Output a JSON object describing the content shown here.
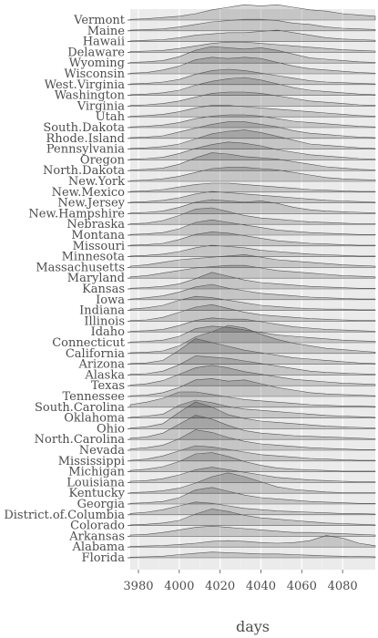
{
  "chart_data": {
    "type": "ridgeline",
    "xlabel": "days",
    "ylabel": "",
    "xlim": [
      3976,
      4096
    ],
    "x_ticks": [
      3980,
      4000,
      4020,
      4040,
      4060,
      4080
    ],
    "grid": true,
    "legend": "none",
    "fill_color": "#000000",
    "fill_opacity": 0.16,
    "stroke_color": "#555555",
    "panel_bg": "#ebebeb",
    "x": [
      3976,
      3984,
      3992,
      4000,
      4008,
      4016,
      4024,
      4032,
      4040,
      4048,
      4056,
      4064,
      4072,
      4080,
      4088,
      4096
    ],
    "series": [
      {
        "name": "Florida",
        "values": [
          0.05,
          0.08,
          0.12,
          0.25,
          0.35,
          0.45,
          0.4,
          0.35,
          0.3,
          0.3,
          0.25,
          0.2,
          0.15,
          0.12,
          0.1,
          0.08
        ]
      },
      {
        "name": "Alabama",
        "values": [
          0.05,
          0.08,
          0.12,
          0.2,
          0.3,
          0.45,
          0.5,
          0.45,
          0.35,
          0.3,
          0.35,
          0.5,
          0.9,
          0.7,
          0.3,
          0.1
        ]
      },
      {
        "name": "Arkansas",
        "values": [
          0.1,
          0.15,
          0.3,
          0.5,
          0.7,
          0.8,
          0.7,
          0.6,
          0.5,
          0.4,
          0.3,
          0.3,
          0.25,
          0.2,
          0.15,
          0.1
        ]
      },
      {
        "name": "Colorado",
        "values": [
          0.05,
          0.1,
          0.2,
          0.4,
          0.9,
          1.3,
          1.1,
          0.8,
          0.6,
          0.5,
          0.4,
          0.3,
          0.2,
          0.15,
          0.1,
          0.05
        ]
      },
      {
        "name": "District.of.Columbia",
        "values": [
          0.1,
          0.2,
          0.4,
          0.7,
          1.0,
          0.9,
          0.7,
          0.5,
          0.4,
          0.3,
          0.25,
          0.2,
          0.15,
          0.1,
          0.1,
          0.05
        ]
      },
      {
        "name": "Georgia",
        "values": [
          0.05,
          0.1,
          0.2,
          0.5,
          1.1,
          1.3,
          1.0,
          0.7,
          0.5,
          0.4,
          0.3,
          0.2,
          0.15,
          0.1,
          0.05,
          0.05
        ]
      },
      {
        "name": "Kentucky",
        "values": [
          0.05,
          0.1,
          0.2,
          0.4,
          0.8,
          1.3,
          1.6,
          1.3,
          0.9,
          0.5,
          0.3,
          0.2,
          0.1,
          0.05,
          0.05,
          0.05
        ]
      },
      {
        "name": "Louisiana",
        "values": [
          0.1,
          0.15,
          0.3,
          0.6,
          1.0,
          1.2,
          1.0,
          0.8,
          0.6,
          0.4,
          0.3,
          0.2,
          0.15,
          0.1,
          0.05,
          0.05
        ]
      },
      {
        "name": "Michigan",
        "values": [
          0.1,
          0.2,
          0.4,
          0.8,
          1.4,
          1.5,
          1.2,
          0.8,
          0.5,
          0.3,
          0.2,
          0.15,
          0.1,
          0.05,
          0.05,
          0.05
        ]
      },
      {
        "name": "Mississippi",
        "values": [
          0.05,
          0.15,
          0.4,
          0.8,
          1.2,
          1.1,
          0.9,
          0.7,
          0.5,
          0.4,
          0.3,
          0.2,
          0.15,
          0.1,
          0.05,
          0.05
        ]
      },
      {
        "name": "Nevada",
        "values": [
          0.1,
          0.2,
          0.4,
          0.9,
          1.6,
          1.4,
          1.0,
          0.7,
          0.5,
          0.4,
          0.3,
          0.2,
          0.15,
          0.1,
          0.05,
          0.05
        ]
      },
      {
        "name": "North.Carolina",
        "values": [
          0.1,
          0.2,
          0.5,
          1.2,
          1.9,
          1.6,
          1.1,
          0.7,
          0.5,
          0.4,
          0.3,
          0.25,
          0.2,
          0.15,
          0.1,
          0.05
        ]
      },
      {
        "name": "Ohio",
        "values": [
          0.05,
          0.15,
          0.4,
          1.3,
          2.1,
          1.7,
          1.1,
          0.8,
          0.6,
          0.5,
          0.4,
          0.3,
          0.2,
          0.15,
          0.1,
          0.05
        ]
      },
      {
        "name": "Oklahoma",
        "values": [
          0.05,
          0.15,
          0.3,
          1.0,
          1.4,
          1.2,
          0.9,
          0.7,
          0.6,
          0.5,
          0.4,
          0.3,
          0.2,
          0.15,
          0.1,
          0.05
        ]
      },
      {
        "name": "South.Carolina",
        "values": [
          0.2,
          0.4,
          0.7,
          1.2,
          1.2,
          1.0,
          0.8,
          0.6,
          0.5,
          0.4,
          0.3,
          0.2,
          0.15,
          0.1,
          0.1,
          0.05
        ]
      },
      {
        "name": "Tennessee",
        "values": [
          0.05,
          0.1,
          0.3,
          0.7,
          1.3,
          1.4,
          1.2,
          1.3,
          1.0,
          0.7,
          0.5,
          0.3,
          0.2,
          0.15,
          0.1,
          0.05
        ]
      },
      {
        "name": "Texas",
        "values": [
          0.05,
          0.15,
          0.4,
          0.9,
          1.4,
          1.6,
          1.4,
          1.1,
          0.9,
          0.7,
          0.5,
          0.4,
          0.3,
          0.2,
          0.15,
          0.1
        ]
      },
      {
        "name": "Alaska",
        "values": [
          0.05,
          0.1,
          0.3,
          0.8,
          1.5,
          1.4,
          1.3,
          1.1,
          0.9,
          0.7,
          0.5,
          0.3,
          0.2,
          0.15,
          0.1,
          0.05
        ]
      },
      {
        "name": "Arizona",
        "values": [
          0.05,
          0.1,
          0.3,
          1.1,
          2.0,
          1.7,
          1.4,
          1.1,
          0.9,
          0.7,
          0.5,
          0.4,
          0.3,
          0.2,
          0.1,
          0.05
        ]
      },
      {
        "name": "California",
        "values": [
          0.05,
          0.1,
          0.2,
          0.6,
          1.3,
          1.7,
          2.2,
          2.0,
          1.5,
          1.1,
          0.8,
          0.6,
          0.4,
          0.3,
          0.2,
          0.1
        ]
      },
      {
        "name": "Connecticut",
        "values": [
          0.05,
          0.1,
          0.2,
          0.5,
          1.1,
          1.3,
          1.2,
          1.0,
          0.8,
          0.6,
          0.5,
          0.4,
          0.3,
          0.2,
          0.15,
          0.1
        ]
      },
      {
        "name": "Idaho",
        "values": [
          0.05,
          0.1,
          0.2,
          0.5,
          0.9,
          1.1,
          1.0,
          1.0,
          0.8,
          0.6,
          0.4,
          0.3,
          0.2,
          0.15,
          0.1,
          0.05
        ]
      },
      {
        "name": "Illinois",
        "values": [
          0.05,
          0.1,
          0.3,
          0.7,
          1.1,
          1.3,
          1.0,
          0.7,
          0.5,
          0.4,
          0.3,
          0.2,
          0.15,
          0.1,
          0.05,
          0.05
        ]
      },
      {
        "name": "Indiana",
        "values": [
          0.1,
          0.2,
          0.4,
          0.8,
          1.1,
          1.0,
          0.8,
          0.6,
          0.4,
          0.3,
          0.2,
          0.15,
          0.1,
          0.1,
          0.05,
          0.05
        ]
      },
      {
        "name": "Iowa",
        "values": [
          0.05,
          0.15,
          0.3,
          0.6,
          1.0,
          1.2,
          0.9,
          0.7,
          0.5,
          0.4,
          0.3,
          0.2,
          0.15,
          0.1,
          0.05,
          0.05
        ]
      },
      {
        "name": "Kansas",
        "values": [
          0.05,
          0.1,
          0.2,
          0.4,
          0.8,
          1.3,
          1.0,
          0.7,
          0.5,
          0.4,
          0.3,
          0.2,
          0.15,
          0.1,
          0.05,
          0.05
        ]
      },
      {
        "name": "Maryland",
        "values": [
          0.1,
          0.2,
          0.4,
          0.6,
          0.8,
          0.9,
          1.0,
          1.0,
          0.8,
          0.6,
          0.5,
          0.4,
          0.3,
          0.2,
          0.15,
          0.1
        ]
      },
      {
        "name": "Massachusetts",
        "values": [
          0.1,
          0.2,
          0.4,
          0.6,
          0.7,
          0.8,
          0.9,
          1.0,
          0.8,
          0.6,
          0.5,
          0.4,
          0.3,
          0.2,
          0.15,
          0.1
        ]
      },
      {
        "name": "Minnesota",
        "values": [
          0.05,
          0.1,
          0.2,
          0.4,
          0.7,
          0.9,
          0.8,
          0.7,
          0.5,
          0.4,
          0.3,
          0.2,
          0.15,
          0.1,
          0.05,
          0.05
        ]
      },
      {
        "name": "Missouri",
        "values": [
          0.05,
          0.1,
          0.2,
          0.5,
          0.9,
          1.1,
          1.0,
          0.8,
          0.6,
          0.4,
          0.3,
          0.2,
          0.15,
          0.1,
          0.05,
          0.05
        ]
      },
      {
        "name": "Montana",
        "values": [
          0.05,
          0.1,
          0.2,
          0.5,
          1.0,
          1.2,
          1.0,
          0.8,
          0.6,
          0.4,
          0.3,
          0.2,
          0.15,
          0.1,
          0.05,
          0.05
        ]
      },
      {
        "name": "Nebraska",
        "values": [
          0.05,
          0.1,
          0.3,
          0.7,
          1.2,
          1.3,
          1.0,
          0.7,
          0.5,
          0.4,
          0.3,
          0.2,
          0.15,
          0.1,
          0.05,
          0.05
        ]
      },
      {
        "name": "New.Hampshire",
        "values": [
          0.05,
          0.1,
          0.2,
          0.5,
          0.9,
          1.1,
          1.0,
          0.9,
          1.0,
          0.8,
          0.5,
          0.3,
          0.2,
          0.15,
          0.1,
          0.05
        ]
      },
      {
        "name": "New.Jersey",
        "values": [
          0.05,
          0.1,
          0.2,
          0.4,
          0.7,
          0.9,
          0.8,
          0.7,
          0.6,
          0.5,
          0.4,
          0.3,
          0.2,
          0.15,
          0.1,
          0.05
        ]
      },
      {
        "name": "New.Mexico",
        "values": [
          0.05,
          0.1,
          0.2,
          0.4,
          0.6,
          0.7,
          0.7,
          0.6,
          0.5,
          0.4,
          0.3,
          0.2,
          0.15,
          0.1,
          0.05,
          0.05
        ]
      },
      {
        "name": "New.York",
        "values": [
          0.05,
          0.1,
          0.2,
          0.4,
          0.7,
          1.0,
          1.1,
          1.1,
          1.0,
          0.9,
          0.7,
          0.5,
          0.3,
          0.2,
          0.15,
          0.1
        ]
      },
      {
        "name": "North.Dakota",
        "values": [
          0.05,
          0.1,
          0.2,
          0.5,
          1.0,
          1.4,
          1.3,
          1.1,
          1.0,
          0.9,
          0.7,
          0.5,
          0.3,
          0.2,
          0.1,
          0.05
        ]
      },
      {
        "name": "Oregon",
        "values": [
          0.05,
          0.1,
          0.2,
          0.5,
          0.9,
          1.2,
          1.4,
          1.3,
          1.1,
          0.8,
          0.6,
          0.4,
          0.3,
          0.2,
          0.1,
          0.05
        ]
      },
      {
        "name": "Pennsylvania",
        "values": [
          0.05,
          0.1,
          0.2,
          0.4,
          0.8,
          1.2,
          1.4,
          1.5,
          1.3,
          1.0,
          0.7,
          0.4,
          0.3,
          0.2,
          0.1,
          0.05
        ]
      },
      {
        "name": "Rhode.Island",
        "values": [
          0.05,
          0.1,
          0.2,
          0.5,
          0.8,
          1.1,
          1.3,
          1.3,
          1.1,
          0.9,
          0.6,
          0.4,
          0.3,
          0.2,
          0.1,
          0.05
        ]
      },
      {
        "name": "South.Dakota",
        "values": [
          0.05,
          0.1,
          0.2,
          0.4,
          0.7,
          0.9,
          1.0,
          1.0,
          0.9,
          0.7,
          0.5,
          0.4,
          0.3,
          0.2,
          0.1,
          0.05
        ]
      },
      {
        "name": "Utah",
        "values": [
          0.05,
          0.1,
          0.2,
          0.4,
          0.7,
          0.9,
          0.9,
          0.8,
          0.7,
          0.6,
          0.5,
          0.4,
          0.3,
          0.2,
          0.1,
          0.05
        ]
      },
      {
        "name": "Virginia",
        "values": [
          0.05,
          0.1,
          0.2,
          0.4,
          0.7,
          1.0,
          1.1,
          1.1,
          1.0,
          0.8,
          0.6,
          0.4,
          0.3,
          0.2,
          0.1,
          0.05
        ]
      },
      {
        "name": "Washington",
        "values": [
          0.05,
          0.1,
          0.2,
          0.4,
          0.8,
          1.1,
          1.3,
          1.4,
          1.2,
          0.9,
          0.6,
          0.4,
          0.3,
          0.2,
          0.1,
          0.05
        ]
      },
      {
        "name": "West.Virginia",
        "values": [
          0.05,
          0.1,
          0.2,
          0.4,
          0.8,
          1.1,
          1.2,
          1.1,
          0.9,
          0.7,
          0.5,
          0.3,
          0.2,
          0.15,
          0.1,
          0.05
        ]
      },
      {
        "name": "Wisconsin",
        "values": [
          0.05,
          0.1,
          0.3,
          0.6,
          1.1,
          1.3,
          1.2,
          1.3,
          1.2,
          0.9,
          0.6,
          0.4,
          0.3,
          0.2,
          0.1,
          0.05
        ]
      },
      {
        "name": "Wyoming",
        "values": [
          0.05,
          0.1,
          0.2,
          0.5,
          1.0,
          1.3,
          1.2,
          1.1,
          1.2,
          1.0,
          0.7,
          0.4,
          0.3,
          0.2,
          0.1,
          0.05
        ]
      },
      {
        "name": "Delaware",
        "values": [
          0.05,
          0.1,
          0.15,
          0.3,
          0.5,
          0.7,
          0.8,
          0.8,
          0.7,
          0.6,
          0.5,
          0.4,
          0.3,
          0.2,
          0.15,
          0.1
        ]
      },
      {
        "name": "Hawaii",
        "values": [
          0.05,
          0.1,
          0.15,
          0.3,
          0.5,
          0.6,
          0.7,
          0.7,
          0.8,
          0.9,
          0.7,
          0.5,
          0.3,
          0.2,
          0.15,
          0.1
        ]
      },
      {
        "name": "Maine",
        "values": [
          0.05,
          0.1,
          0.15,
          0.3,
          0.5,
          0.7,
          0.8,
          0.9,
          0.9,
          0.8,
          0.6,
          0.5,
          0.3,
          0.2,
          0.15,
          0.1
        ]
      },
      {
        "name": "Vermont",
        "values": [
          0.05,
          0.1,
          0.2,
          0.3,
          0.5,
          0.8,
          1.0,
          1.2,
          1.1,
          1.2,
          1.0,
          0.8,
          0.7,
          0.5,
          0.4,
          0.3
        ]
      }
    ]
  }
}
